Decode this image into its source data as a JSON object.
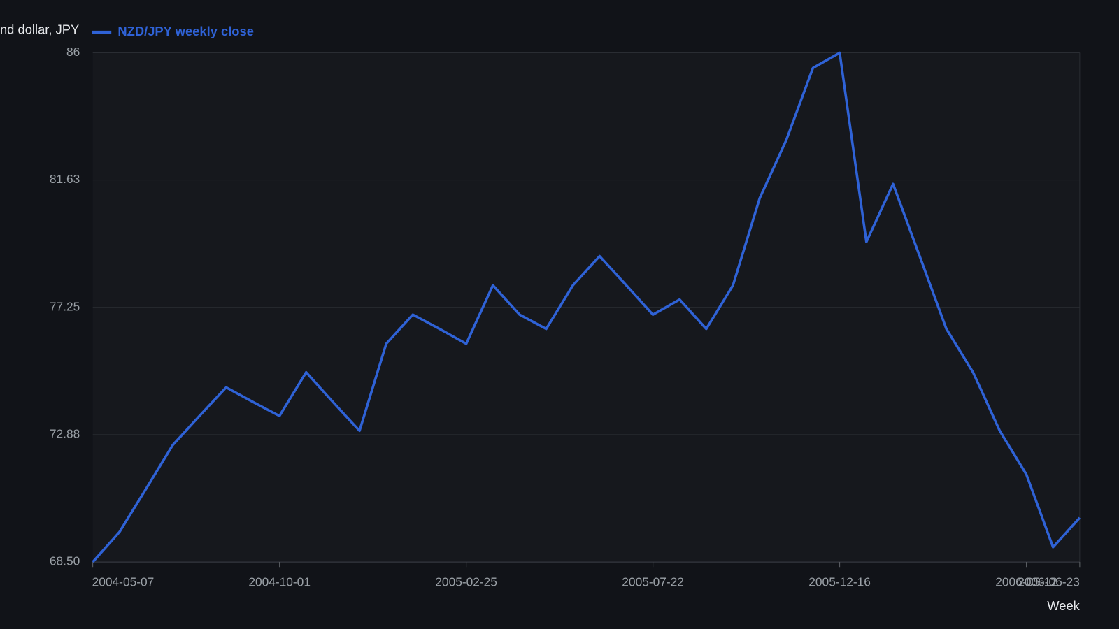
{
  "chart_data": {
    "type": "line",
    "y_axis_label": "nd dollar, JPY",
    "x_axis_label": "Week",
    "x": [
      "2004-05-07",
      "2004-05-28",
      "2004-06-18",
      "2004-07-09",
      "2004-07-30",
      "2004-08-20",
      "2004-09-10",
      "2004-10-01",
      "2004-10-22",
      "2004-11-12",
      "2004-12-03",
      "2004-12-24",
      "2005-01-14",
      "2005-02-04",
      "2005-02-25",
      "2005-03-18",
      "2005-04-08",
      "2005-04-29",
      "2005-05-20",
      "2005-06-10",
      "2005-07-01",
      "2005-07-22",
      "2005-08-12",
      "2005-09-02",
      "2005-09-23",
      "2005-10-14",
      "2005-11-04",
      "2005-11-25",
      "2005-12-16",
      "2006-01-06",
      "2006-01-27",
      "2006-02-17",
      "2006-03-10",
      "2006-03-31",
      "2006-04-21",
      "2006-05-12",
      "2006-06-02",
      "2006-06-23"
    ],
    "series": [
      {
        "name": "NZD/JPY weekly close",
        "color": "#2f62d6",
        "values": [
          68.5,
          69.53,
          71.02,
          72.52,
          73.52,
          74.5,
          74.0,
          73.52,
          75.02,
          74.0,
          73.01,
          76.0,
          77.0,
          76.51,
          76.0,
          78.01,
          77.0,
          76.51,
          78.01,
          79.01,
          78.01,
          77.0,
          77.52,
          76.51,
          78.01,
          81.0,
          83.0,
          85.48,
          86.0,
          79.5,
          81.49,
          79.01,
          76.51,
          75.02,
          73.01,
          71.51,
          69.01,
          70.02
        ]
      }
    ],
    "xlim": [
      "2004-05-07",
      "2006-06-23"
    ],
    "xticks": [
      "2004-05-07",
      "2004-10-01",
      "2005-02-25",
      "2005-07-22",
      "2005-12-16",
      "2006-05-12",
      "2006-06-23"
    ],
    "ylim": [
      68.5,
      86
    ],
    "yticks": [
      {
        "value": 68.5,
        "label": "68.50"
      },
      {
        "value": 72.875,
        "label": "72.88"
      },
      77.25,
      {
        "value": 81.625,
        "label": "81.63"
      },
      86
    ],
    "grid": true,
    "legend": "top-left"
  }
}
